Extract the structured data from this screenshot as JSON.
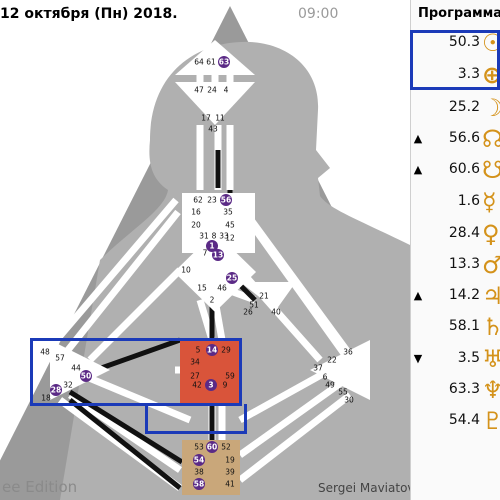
{
  "header": {
    "date": "12 октября (Пн) 2018.",
    "time": "09:00"
  },
  "footer": {
    "left": "ee Edition",
    "right": "Sergei Maviatov",
    "small": ""
  },
  "panel": {
    "title": "Программа",
    "rows": [
      {
        "mark": "",
        "value": "50.3",
        "symbol": "☉",
        "name": "sun"
      },
      {
        "mark": "",
        "value": "3.3",
        "symbol": "⊕",
        "name": "earth"
      },
      {
        "mark": "",
        "value": "25.2",
        "symbol": "☽",
        "name": "moon"
      },
      {
        "mark": "▲",
        "value": "56.6",
        "symbol": "☊",
        "name": "north-node"
      },
      {
        "mark": "▲",
        "value": "60.6",
        "symbol": "☋",
        "name": "south-node"
      },
      {
        "mark": "",
        "value": "1.6",
        "symbol": "☿",
        "name": "mercury"
      },
      {
        "mark": "",
        "value": "28.4",
        "symbol": "♀",
        "name": "venus"
      },
      {
        "mark": "",
        "value": "13.3",
        "symbol": "♂",
        "name": "mars"
      },
      {
        "mark": "▲",
        "value": "14.2",
        "symbol": "♃",
        "name": "jupiter"
      },
      {
        "mark": "",
        "value": "58.1",
        "symbol": "♄",
        "name": "saturn"
      },
      {
        "mark": "▼",
        "value": "3.5",
        "symbol": "♅",
        "name": "uranus"
      },
      {
        "mark": "",
        "value": "63.3",
        "symbol": "♆",
        "name": "neptune"
      },
      {
        "mark": "",
        "value": "54.4",
        "symbol": "♇",
        "name": "pluto"
      }
    ]
  },
  "colors": {
    "triangle": "#9a9a9a",
    "center": "#ffffff",
    "defined_red": "#d9543a",
    "defined_tan": "#c9a77a",
    "channel_black": "#111111",
    "gate_purple": "#5b2a86",
    "highlight": "#1b3ab8",
    "symbol": "#d4921a"
  },
  "centers": {
    "head": {
      "gates": [
        "64",
        "61",
        "63"
      ]
    },
    "ajna": {
      "gates": [
        "47",
        "24",
        "4",
        "17",
        "11",
        "43"
      ]
    },
    "throat": {
      "gates": [
        "62",
        "23",
        "56",
        "16",
        "35",
        "20",
        "31",
        "8",
        "33",
        "45",
        "12"
      ]
    },
    "g": {
      "gates": [
        "1",
        "7",
        "13",
        "10",
        "25",
        "15",
        "46",
        "2"
      ]
    },
    "heart": {
      "gates": [
        "21",
        "51",
        "26",
        "40"
      ]
    },
    "spleen": {
      "gates": [
        "48",
        "57",
        "44",
        "50",
        "32",
        "28",
        "18"
      ]
    },
    "sacral": {
      "gates": [
        "5",
        "14",
        "29",
        "34",
        "27",
        "59",
        "42",
        "3",
        "9"
      ]
    },
    "solar": {
      "gates": [
        "36",
        "22",
        "37",
        "6",
        "49",
        "55",
        "30"
      ]
    },
    "root": {
      "gates": [
        "53",
        "60",
        "52",
        "54",
        "19",
        "38",
        "39",
        "58",
        "41"
      ]
    }
  }
}
